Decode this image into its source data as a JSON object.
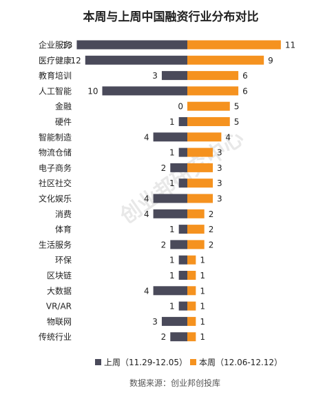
{
  "chart_data": {
    "type": "bar",
    "orientation": "horizontal-diverging",
    "title": "本周与上周中国融资行业分布对比",
    "categories": [
      "企业服务",
      "医疗健康",
      "教育培训",
      "人工智能",
      "金融",
      "硬件",
      "智能制造",
      "物流仓储",
      "电子商务",
      "社区社交",
      "文化娱乐",
      "消费",
      "体育",
      "生活服务",
      "环保",
      "区块链",
      "大数据",
      "VR/AR",
      "物联网",
      "传统行业"
    ],
    "series": [
      {
        "name": "上周（11.29-12.05）",
        "color": "#4a4a5a",
        "side": "left",
        "values": [
          13,
          12,
          3,
          10,
          0,
          1,
          4,
          1,
          2,
          1,
          4,
          4,
          1,
          2,
          1,
          1,
          4,
          1,
          3,
          2
        ]
      },
      {
        "name": "本周（12.06-12.12）",
        "color": "#f5921f",
        "side": "right",
        "values": [
          11,
          9,
          6,
          6,
          5,
          5,
          4,
          3,
          3,
          3,
          3,
          2,
          2,
          2,
          1,
          1,
          1,
          1,
          1,
          1
        ]
      }
    ],
    "legend_position": "bottom",
    "grid": false,
    "source": "数据来源：创业邦创投库",
    "watermark": "创业邦研究中心"
  }
}
